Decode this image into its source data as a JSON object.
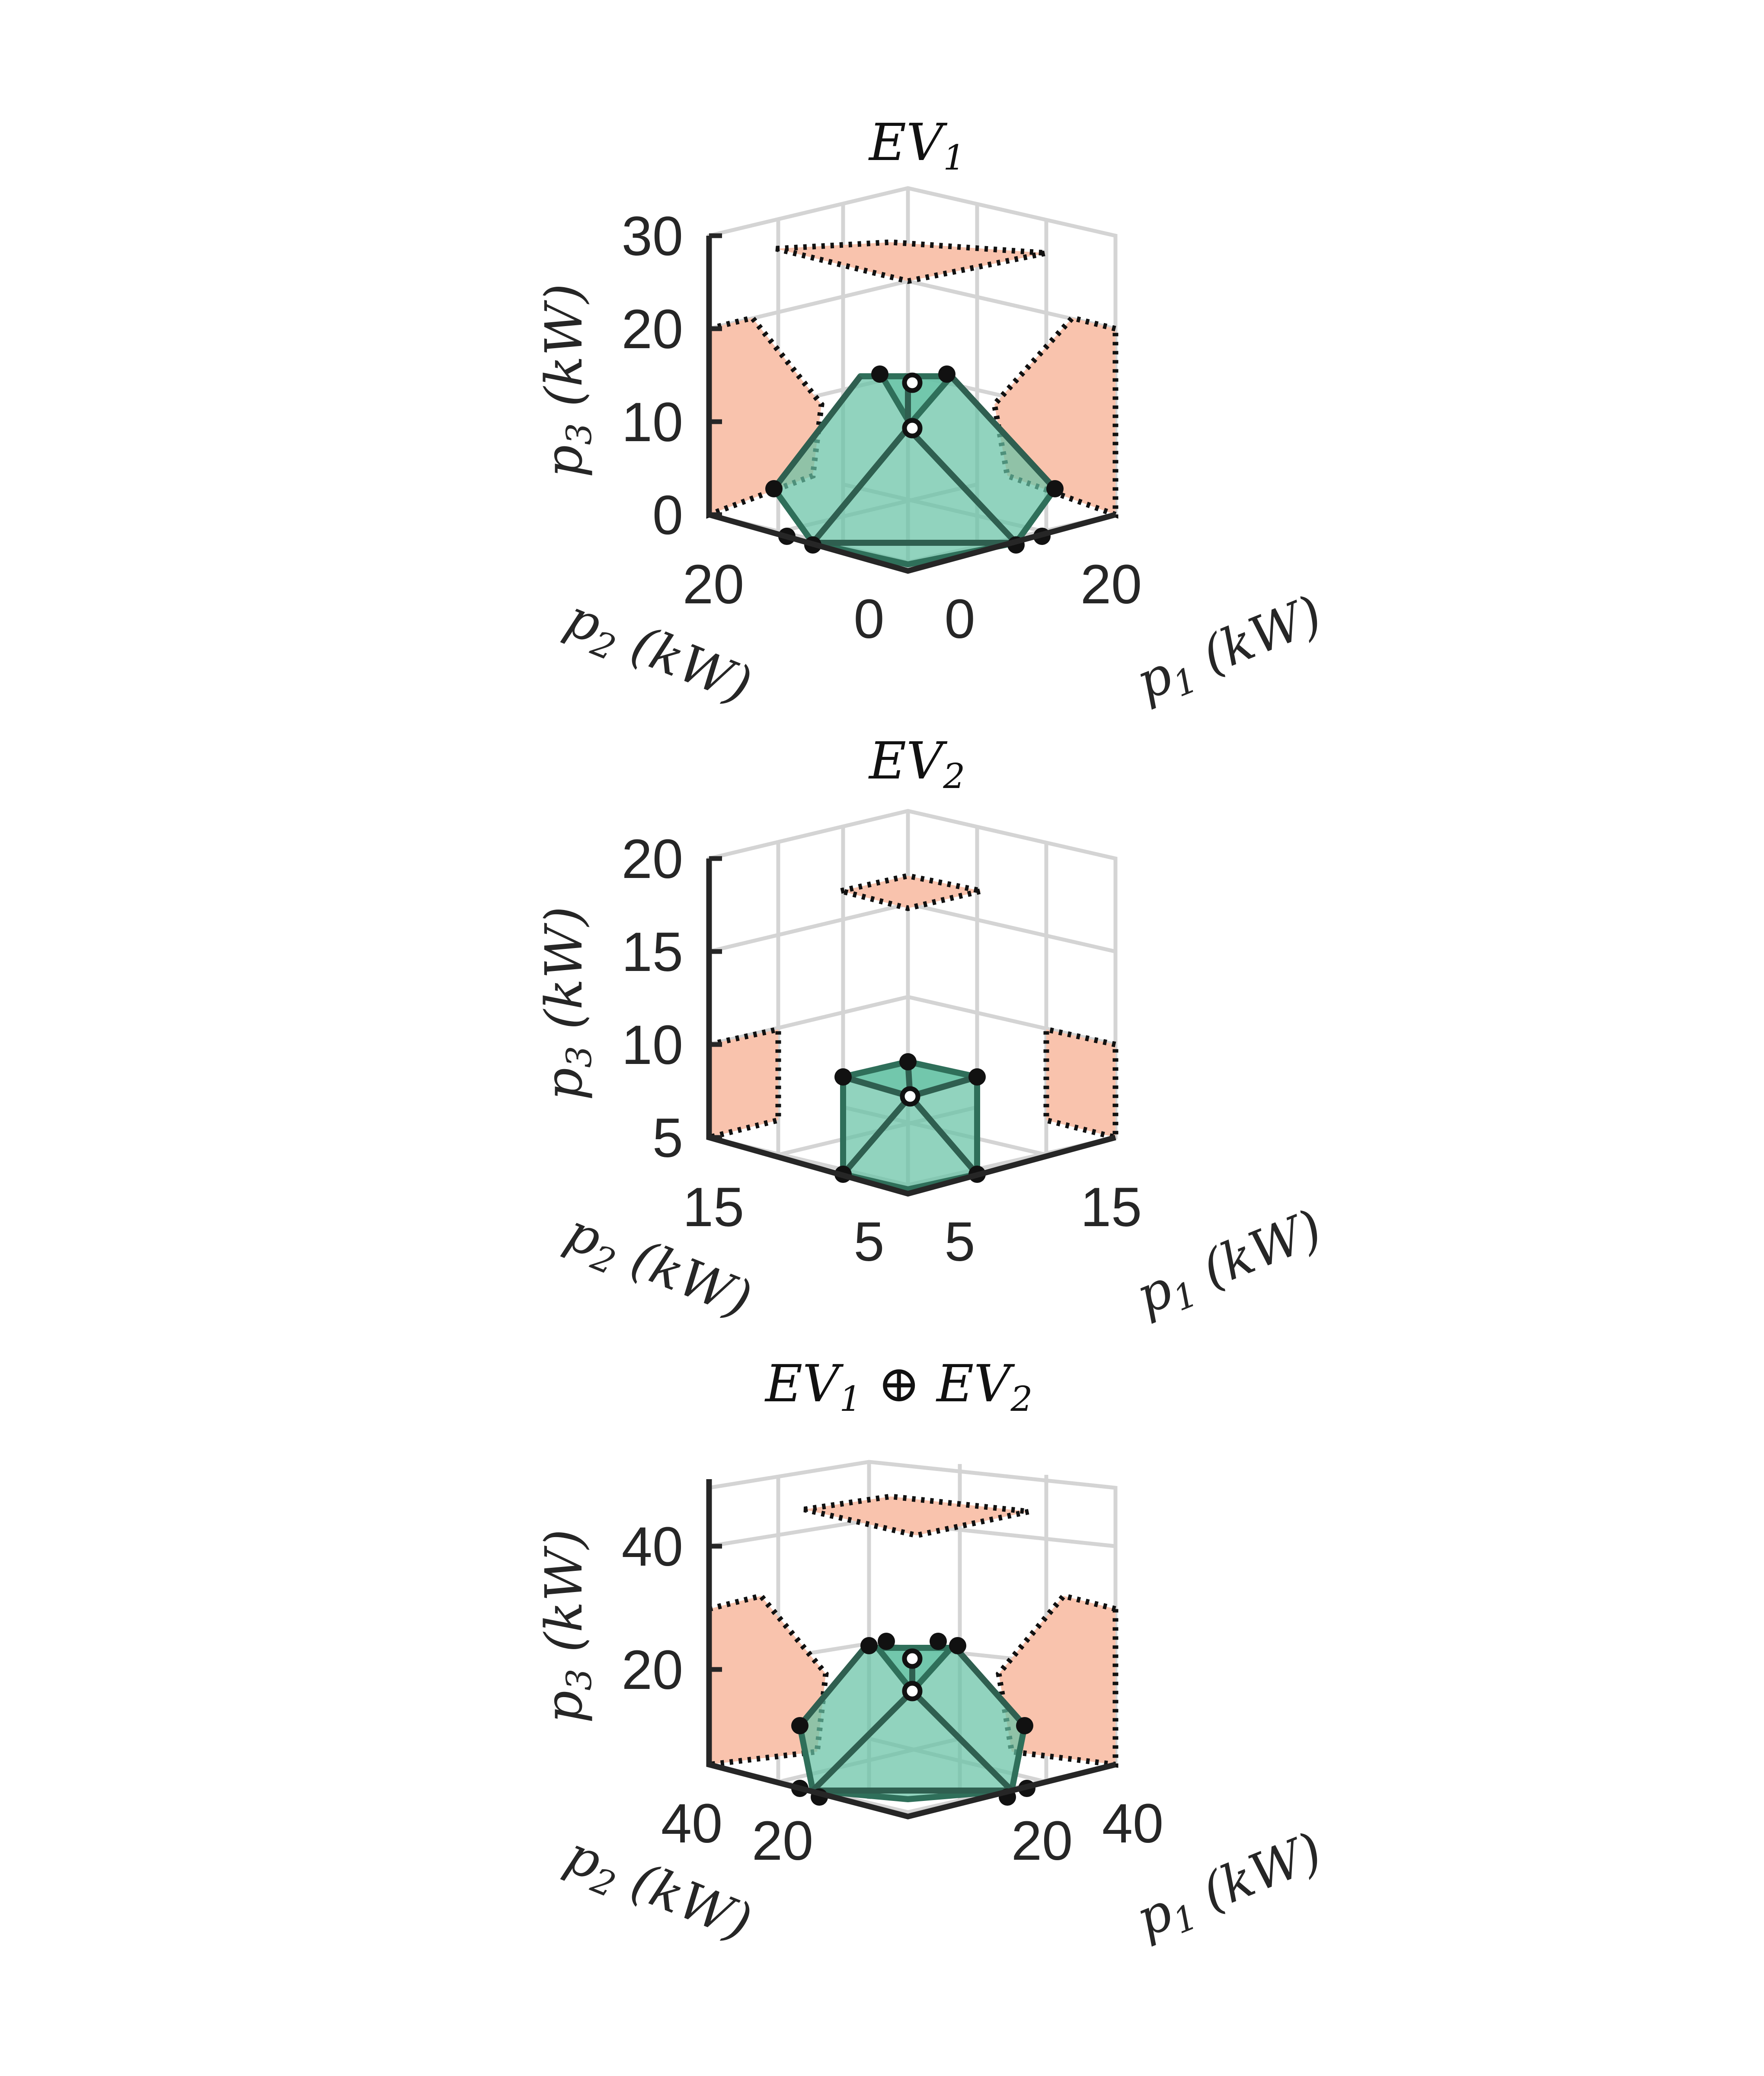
{
  "colors": {
    "polytope": "#66c2a5",
    "projection": "#f9c3ad",
    "grid": "#d4d4d4",
    "axis": "#262626"
  },
  "chart_data": [
    {
      "type": "scatter",
      "subtype": "3d-polytope",
      "title": "EV_1",
      "xlabel": "p_1 (kW)",
      "ylabel": "p_2 (kW)",
      "zlabel": "p_3 (kW)",
      "x_ticks": [
        "0",
        "20"
      ],
      "y_ticks": [
        "0",
        "20"
      ],
      "z_ticks": [
        "0",
        "10",
        "20",
        "30"
      ],
      "zlim": [
        0,
        30
      ],
      "grid": true,
      "vertices_p3": [
        0,
        0,
        0,
        0,
        3,
        3,
        3,
        3,
        10,
        14,
        15,
        15
      ]
    },
    {
      "type": "scatter",
      "subtype": "3d-polytope",
      "title": "EV_2",
      "xlabel": "p_1 (kW)",
      "ylabel": "p_2 (kW)",
      "zlabel": "p_3 (kW)",
      "x_ticks": [
        "5",
        "15"
      ],
      "y_ticks": [
        "5",
        "15"
      ],
      "z_ticks": [
        "5",
        "10",
        "15",
        "20"
      ],
      "zlim": [
        5,
        20
      ],
      "grid": true,
      "vertices_p3": [
        5,
        5,
        8,
        8,
        9,
        7.5
      ]
    },
    {
      "type": "scatter",
      "subtype": "3d-polytope",
      "title": "EV_1 ⊕ EV_2",
      "xlabel": "p_1 (kW)",
      "ylabel": "p_2 (kW)",
      "zlabel": "p_3 (kW)",
      "x_ticks": [
        "20",
        "40"
      ],
      "y_ticks": [
        "20",
        "40"
      ],
      "z_ticks": [
        "20",
        "40"
      ],
      "zlim": [
        5,
        50
      ],
      "grid": true,
      "vertices_p3": [
        5,
        5,
        5,
        5,
        12,
        12,
        12,
        12,
        18,
        22,
        23,
        23
      ]
    }
  ],
  "panels": [
    {
      "title_main": "EV",
      "title_sub": "1",
      "title_rest": "",
      "title_sub2": "",
      "z_ticks": [
        "0",
        "10",
        "20",
        "30"
      ],
      "y_ticks": [
        "20",
        "0"
      ],
      "x_ticks": [
        "0",
        "20"
      ],
      "zlabel": {
        "var": "p",
        "sub": "3",
        "unit": " (kW)"
      },
      "ylabel": {
        "var": "p",
        "sub": "2",
        "unit": " (kW)"
      },
      "xlabel": {
        "var": "p",
        "sub": "1",
        "unit": " (kW)"
      }
    },
    {
      "title_main": "EV",
      "title_sub": "2",
      "title_rest": "",
      "title_sub2": "",
      "z_ticks": [
        "5",
        "10",
        "15",
        "20"
      ],
      "y_ticks": [
        "15",
        "5"
      ],
      "x_ticks": [
        "5",
        "15"
      ],
      "zlabel": {
        "var": "p",
        "sub": "3",
        "unit": " (kW)"
      },
      "ylabel": {
        "var": "p",
        "sub": "2",
        "unit": " (kW)"
      },
      "xlabel": {
        "var": "p",
        "sub": "1",
        "unit": " (kW)"
      }
    },
    {
      "title_main": "EV",
      "title_sub": "1",
      "title_rest": " ⊕ EV",
      "title_sub2": "2",
      "z_ticks": [
        "20",
        "40"
      ],
      "y_ticks": [
        "40",
        "20"
      ],
      "x_ticks": [
        "20",
        "40"
      ],
      "zlabel": {
        "var": "p",
        "sub": "3",
        "unit": " (kW)"
      },
      "ylabel": {
        "var": "p",
        "sub": "2",
        "unit": " (kW)"
      },
      "xlabel": {
        "var": "p",
        "sub": "1",
        "unit": " (kW)"
      }
    }
  ]
}
